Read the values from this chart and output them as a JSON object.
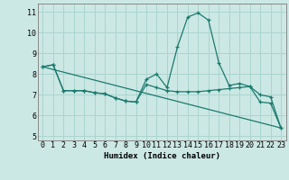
{
  "xlabel": "Humidex (Indice chaleur)",
  "background_color": "#cce8e4",
  "grid_color": "#aad4ce",
  "line_color": "#1a7a6e",
  "xlim": [
    -0.5,
    23.5
  ],
  "ylim": [
    4.8,
    11.4
  ],
  "yticks": [
    5,
    6,
    7,
    8,
    9,
    10,
    11
  ],
  "xticks": [
    0,
    1,
    2,
    3,
    4,
    5,
    6,
    7,
    8,
    9,
    10,
    11,
    12,
    13,
    14,
    15,
    16,
    17,
    18,
    19,
    20,
    21,
    22,
    23
  ],
  "series1_x": [
    0,
    1,
    2,
    3,
    4,
    5,
    6,
    7,
    8,
    9,
    10,
    11,
    12,
    13,
    14,
    15,
    16,
    17,
    18,
    19,
    20,
    21,
    22,
    23
  ],
  "series1_y": [
    8.35,
    8.45,
    7.2,
    7.2,
    7.2,
    7.1,
    7.05,
    6.85,
    6.7,
    6.65,
    7.75,
    8.0,
    7.35,
    9.3,
    10.75,
    10.95,
    10.6,
    8.55,
    7.45,
    7.55,
    7.4,
    6.65,
    6.6,
    5.4
  ],
  "series2_x": [
    0,
    1,
    2,
    3,
    4,
    5,
    6,
    7,
    8,
    9,
    10,
    11,
    12,
    13,
    14,
    15,
    16,
    17,
    18,
    19,
    20,
    21,
    22,
    23
  ],
  "series2_y": [
    8.35,
    8.45,
    7.2,
    7.2,
    7.2,
    7.1,
    7.05,
    6.85,
    6.7,
    6.65,
    7.5,
    7.35,
    7.2,
    7.15,
    7.15,
    7.15,
    7.2,
    7.25,
    7.3,
    7.35,
    7.4,
    7.0,
    6.9,
    5.4
  ],
  "series3_x": [
    0,
    23
  ],
  "series3_y": [
    8.35,
    5.4
  ],
  "marker": "+"
}
